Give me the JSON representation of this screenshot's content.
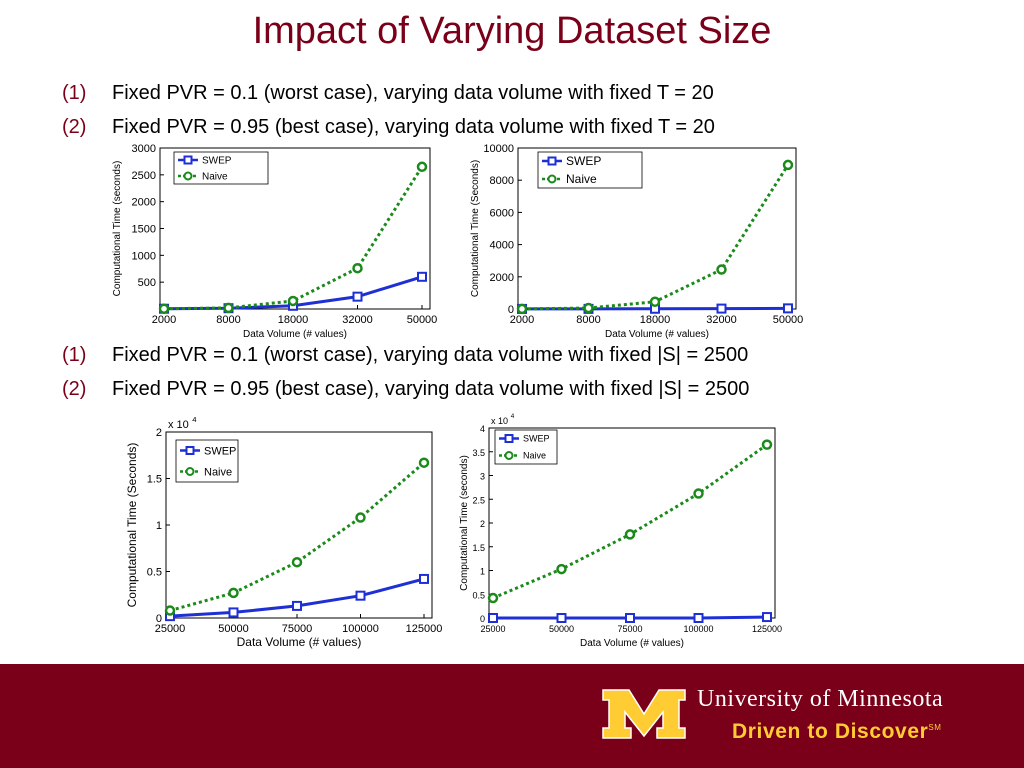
{
  "title": "Impact of Varying Dataset Size",
  "bullets_top": [
    {
      "num": "(1)",
      "text": "Fixed PVR = 0.1 (worst case), varying data volume with fixed T = 20"
    },
    {
      "num": "(2)",
      "text": "Fixed PVR = 0.95 (best case), varying data volume with fixed T = 20"
    }
  ],
  "bullets_bottom": [
    {
      "num": "(1)",
      "text": "Fixed PVR = 0.1 (worst case), varying data volume with fixed |S| = 2500"
    },
    {
      "num": "(2)",
      "text": "Fixed PVR = 0.95 (best case), varying data volume with fixed |S| = 2500"
    }
  ],
  "colors": {
    "swep": "#1f2fd6",
    "naive": "#1a8a1a",
    "brand": "#7a0019",
    "gold": "#ffcc33"
  },
  "chart_data": [
    {
      "type": "line",
      "categories": [
        "2000",
        "8000",
        "18000",
        "32000",
        "50000"
      ],
      "series": [
        {
          "name": "SWEP",
          "values": [
            5,
            15,
            60,
            230,
            600
          ]
        },
        {
          "name": "Naive",
          "values": [
            5,
            20,
            150,
            760,
            2650
          ]
        }
      ],
      "xlabel": "Data Volume (# values)",
      "ylabel": "Computational Time (seconds)",
      "ylim": [
        0,
        3000
      ],
      "yticks": [
        "500",
        "1000",
        "1500",
        "2000",
        "2500",
        "3000"
      ],
      "legend": "top-left",
      "grid": false
    },
    {
      "type": "line",
      "categories": [
        "2000",
        "8000",
        "18000",
        "32000",
        "50000"
      ],
      "series": [
        {
          "name": "SWEP",
          "values": [
            5,
            8,
            15,
            25,
            40
          ]
        },
        {
          "name": "Naive",
          "values": [
            5,
            60,
            450,
            2450,
            8950
          ]
        }
      ],
      "xlabel": "Data Volume (# values)",
      "ylabel": "Computational Time (Seconds)",
      "ylim": [
        0,
        10000
      ],
      "yticks": [
        "0",
        "2000",
        "4000",
        "6000",
        "8000",
        "10000"
      ],
      "legend": "top-left",
      "grid": false
    },
    {
      "type": "line",
      "categories": [
        "25000",
        "50000",
        "75000",
        "100000",
        "125000"
      ],
      "series": [
        {
          "name": "SWEP",
          "values": [
            0.02,
            0.06,
            0.13,
            0.24,
            0.42
          ]
        },
        {
          "name": "Naive",
          "values": [
            0.08,
            0.27,
            0.6,
            1.08,
            1.67
          ]
        }
      ],
      "xlabel": "Data Volume (# values)",
      "ylabel": "Computational Time (Seconds)",
      "ylim": [
        0,
        2
      ],
      "yticks": [
        "0",
        "0.5",
        "1",
        "1.5",
        "2"
      ],
      "multiplier": "x 10",
      "multiplier_exp": "4",
      "legend": "top-left",
      "grid": false
    },
    {
      "type": "line",
      "categories": [
        "25000",
        "50000",
        "75000",
        "100000",
        "125000"
      ],
      "series": [
        {
          "name": "SWEP",
          "values": [
            0.0,
            0.0,
            0.0,
            0.0,
            0.02
          ]
        },
        {
          "name": "Naive",
          "values": [
            0.42,
            1.03,
            1.76,
            2.62,
            3.65
          ]
        }
      ],
      "xlabel": "Data Volume (# values)",
      "ylabel": "Computational Time (seconds)",
      "ylim": [
        0,
        4
      ],
      "yticks": [
        "0",
        "0.5",
        "1",
        "1.5",
        "2",
        "2.5",
        "3",
        "3.5",
        "4"
      ],
      "multiplier": "x 10",
      "multiplier_exp": "4",
      "legend": "top-left",
      "grid": false
    }
  ],
  "footer": {
    "university": "University of Minnesota",
    "tagline": "Driven to Discover",
    "tagline_mark": "SM"
  }
}
